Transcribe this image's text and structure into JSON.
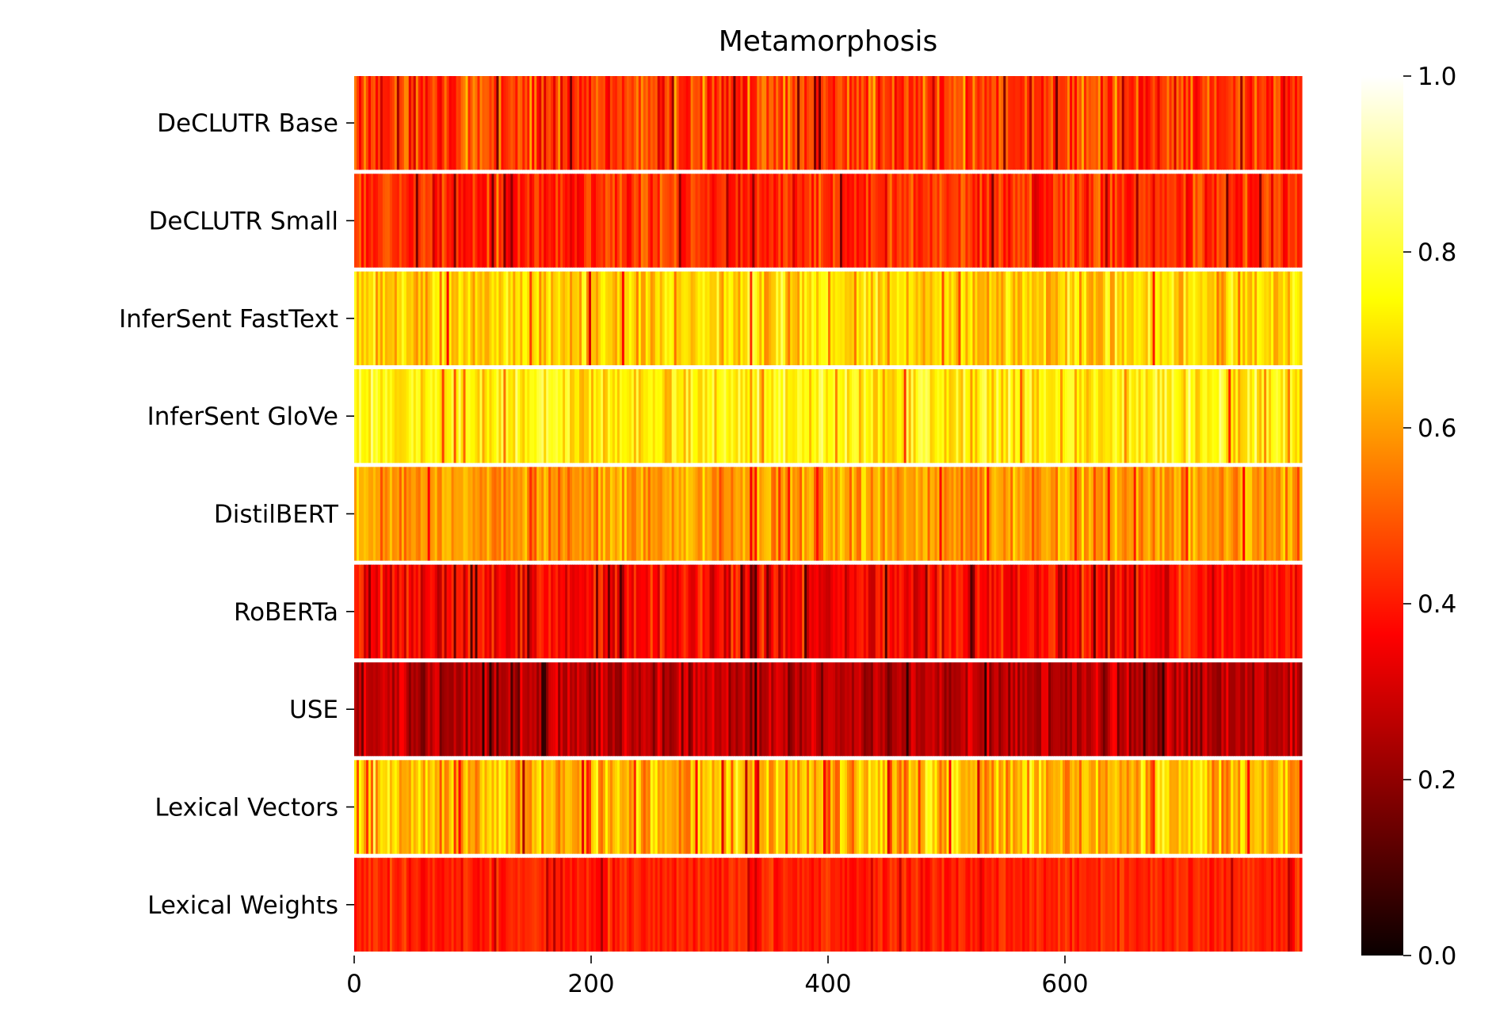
{
  "chart_data": {
    "type": "heatmap",
    "title": "Metamorphosis",
    "xlabel": "",
    "ylabel": "",
    "colormap": "hot",
    "rows": [
      "DeCLUTR Base",
      "DeCLUTR Small",
      "InferSent FastText",
      "InferSent GloVe",
      "DistilBERT",
      "RoBERTa",
      "USE",
      "Lexical Vectors",
      "Lexical Weights"
    ],
    "n_columns": 800,
    "xlim": [
      0,
      800
    ],
    "x_ticks": [
      0,
      200,
      400,
      600
    ],
    "x_tick_labels": [
      "0",
      "200",
      "400",
      "600"
    ],
    "colorbar": {
      "vmin": 0.0,
      "vmax": 1.0,
      "ticks": [
        0.0,
        0.2,
        0.4,
        0.6,
        0.8,
        1.0
      ],
      "tick_labels": [
        "0.0",
        "0.2",
        "0.4",
        "0.6",
        "0.8",
        "1.0"
      ]
    },
    "row_mean_values": [
      0.45,
      0.43,
      0.68,
      0.74,
      0.6,
      0.36,
      0.25,
      0.64,
      0.41
    ],
    "row_value_spread": [
      0.13,
      0.1,
      0.11,
      0.11,
      0.09,
      0.11,
      0.09,
      0.12,
      0.06
    ],
    "row_value_ranges": [
      [
        0.15,
        0.9
      ],
      [
        0.15,
        0.8
      ],
      [
        0.15,
        1.0
      ],
      [
        0.1,
        1.0
      ],
      [
        0.2,
        0.9
      ],
      [
        0.1,
        0.8
      ],
      [
        0.05,
        0.6
      ],
      [
        0.05,
        1.0
      ],
      [
        0.1,
        0.8
      ]
    ]
  }
}
